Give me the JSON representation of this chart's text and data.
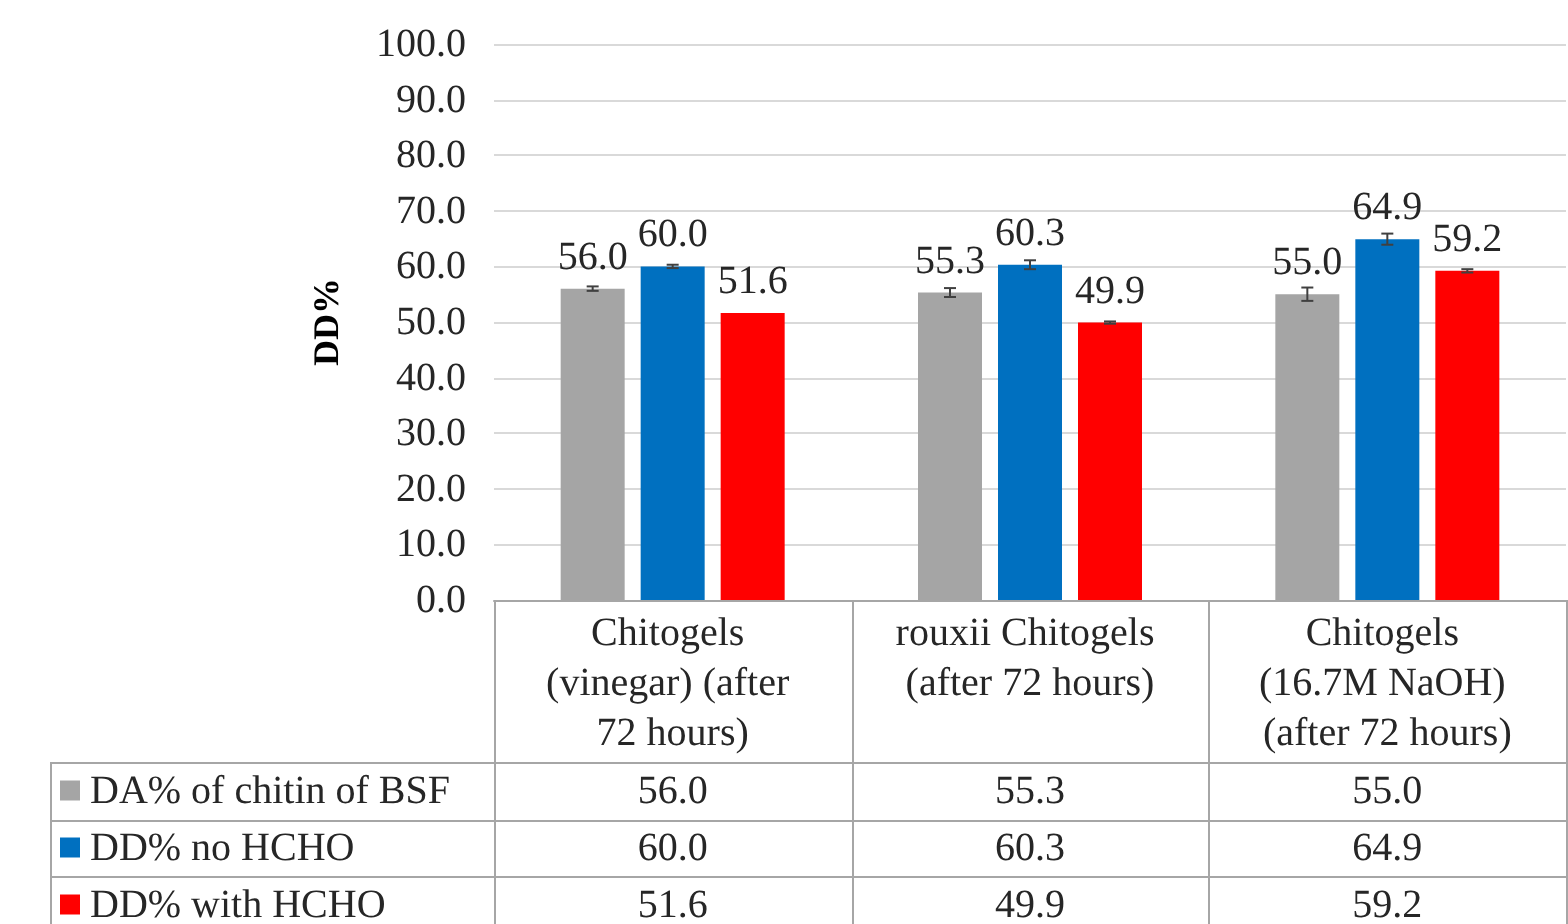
{
  "chart_data": {
    "type": "bar",
    "ylabel": "DD%",
    "categories": [
      "Chitogels (vinegar) (after 72 hours)",
      "rouxii Chitogels (after 72 hours)",
      "Chitogels (16.7M NaOH) (after 72 hours)"
    ],
    "series": [
      {
        "name": "DA% of chitin of BSF",
        "color": "#a5a5a5",
        "values": [
          56.0,
          55.3,
          55.0
        ],
        "value_labels": [
          "56.0",
          "55.3",
          "55.0"
        ],
        "errors": [
          0.4,
          0.8,
          1.2
        ]
      },
      {
        "name": "DD% no HCHO",
        "color": "#0070c0",
        "values": [
          60.0,
          60.3,
          64.9
        ],
        "value_labels": [
          "60.0",
          "60.3",
          "64.9"
        ],
        "errors": [
          0.3,
          0.8,
          1.0
        ]
      },
      {
        "name": "DD% with HCHO",
        "color": "#ff0000",
        "values": [
          51.6,
          49.9,
          59.2
        ],
        "value_labels": [
          "51.6",
          "49.9",
          "59.2"
        ],
        "errors": [
          null,
          0.2,
          0.3
        ]
      }
    ],
    "ylim": [
      0,
      100
    ],
    "yticks": [
      {
        "value": 0,
        "label": "0.0"
      },
      {
        "value": 10,
        "label": "10.0"
      },
      {
        "value": 20,
        "label": "20.0"
      },
      {
        "value": 30,
        "label": "30.0"
      },
      {
        "value": 40,
        "label": "40.0"
      },
      {
        "value": 50,
        "label": "50.0"
      },
      {
        "value": 60,
        "label": "60.0"
      },
      {
        "value": 70,
        "label": "70.0"
      },
      {
        "value": 80,
        "label": "80.0"
      },
      {
        "value": 90,
        "label": "90.0"
      },
      {
        "value": 100,
        "label": "100.0"
      }
    ],
    "grid": "y",
    "legend": "bottom left"
  }
}
